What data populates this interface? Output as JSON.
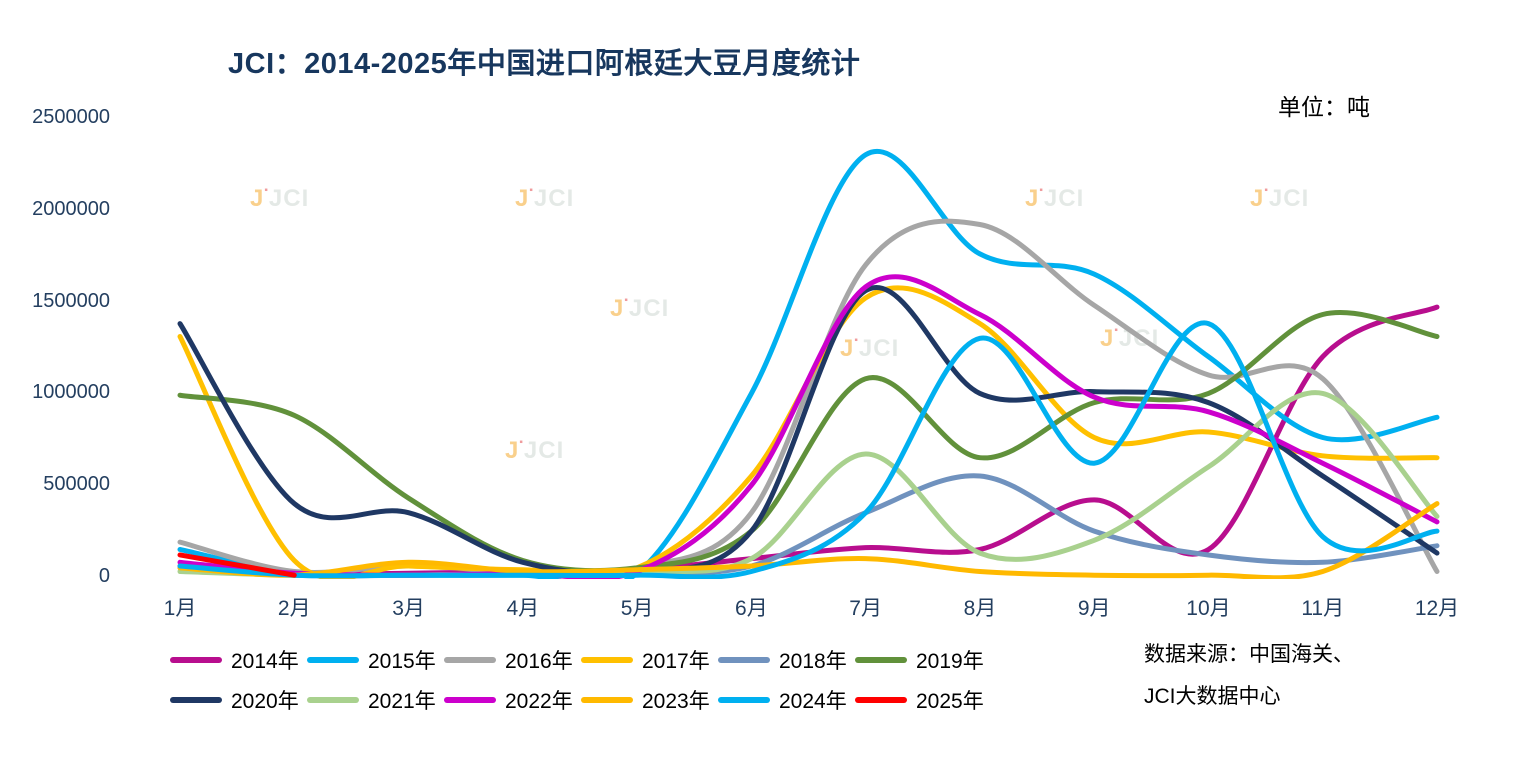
{
  "title": "JCI：2014-2025年中国进口阿根廷大豆月度统计",
  "unit_label": "单位：吨",
  "source_line1": "数据来源：中国海关、",
  "source_line2": "JCI大数据中心",
  "watermark_text": "JCI",
  "chart_data": {
    "type": "line",
    "title": "JCI：2014-2025年中国进口阿根廷大豆月度统计",
    "xlabel": "",
    "ylabel": "吨",
    "ylim": [
      0,
      2500000
    ],
    "yticks": [
      0,
      500000,
      1000000,
      1500000,
      2000000,
      2500000
    ],
    "grid": false,
    "legend_position": "bottom",
    "categories": [
      "1月",
      "2月",
      "3月",
      "4月",
      "5月",
      "6月",
      "7月",
      "8月",
      "9月",
      "10月",
      "11月",
      "12月"
    ],
    "series": [
      {
        "name": "2014年",
        "color": "#B80E8E",
        "values": [
          60000,
          20000,
          20000,
          30000,
          40000,
          100000,
          160000,
          150000,
          420000,
          150000,
          1200000,
          1470000
        ]
      },
      {
        "name": "2015年",
        "color": "#00B0F0",
        "values": [
          150000,
          20000,
          10000,
          10000,
          20000,
          1000000,
          2300000,
          1760000,
          1650000,
          1200000,
          760000,
          870000
        ]
      },
      {
        "name": "2016年",
        "color": "#A6A6A6",
        "values": [
          190000,
          30000,
          60000,
          30000,
          50000,
          350000,
          1700000,
          1920000,
          1480000,
          1100000,
          1080000,
          30000
        ]
      },
      {
        "name": "2017年",
        "color": "#FFC000",
        "values": [
          1310000,
          90000,
          60000,
          40000,
          50000,
          550000,
          1520000,
          1380000,
          760000,
          790000,
          660000,
          650000
        ]
      },
      {
        "name": "2018年",
        "color": "#7092BE",
        "values": [
          50000,
          10000,
          10000,
          20000,
          20000,
          60000,
          350000,
          550000,
          250000,
          120000,
          80000,
          170000
        ]
      },
      {
        "name": "2019年",
        "color": "#61913B",
        "values": [
          990000,
          880000,
          430000,
          90000,
          50000,
          250000,
          1080000,
          650000,
          950000,
          1000000,
          1430000,
          1310000
        ]
      },
      {
        "name": "2020年",
        "color": "#1F3864",
        "values": [
          1380000,
          400000,
          350000,
          80000,
          30000,
          250000,
          1560000,
          1000000,
          1010000,
          950000,
          550000,
          130000
        ]
      },
      {
        "name": "2021年",
        "color": "#A9D18E",
        "values": [
          30000,
          10000,
          10000,
          20000,
          30000,
          100000,
          670000,
          130000,
          200000,
          600000,
          1000000,
          330000
        ]
      },
      {
        "name": "2022年",
        "color": "#CC00CC",
        "values": [
          80000,
          20000,
          10000,
          20000,
          30000,
          500000,
          1580000,
          1430000,
          980000,
          900000,
          620000,
          300000
        ]
      },
      {
        "name": "2023年",
        "color": "#FFB900",
        "values": [
          50000,
          10000,
          80000,
          30000,
          40000,
          60000,
          100000,
          30000,
          10000,
          10000,
          30000,
          400000
        ]
      },
      {
        "name": "2024年",
        "color": "#00B0F0",
        "values": [
          60000,
          10000,
          10000,
          10000,
          10000,
          30000,
          350000,
          1300000,
          620000,
          1380000,
          220000,
          250000
        ]
      },
      {
        "name": "2025年",
        "color": "#FF0000",
        "values": [
          120000,
          10000
        ]
      }
    ]
  }
}
